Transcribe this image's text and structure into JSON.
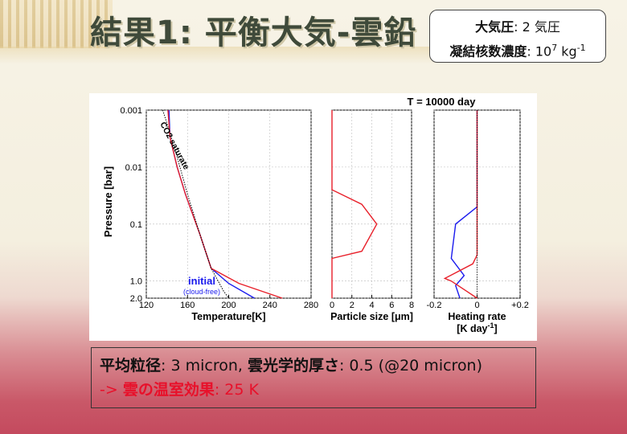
{
  "slide": {
    "title": "結果1: 平衡大気-雲鉛",
    "info_box": {
      "line1_label": "大気圧",
      "line1_value": ": 2 気圧",
      "line2_label": "凝結核数濃度",
      "line2_value": ": 10",
      "line2_exp": "7",
      "line2_unit": " kg",
      "line2_unit_exp": "-1"
    },
    "bottom_box": {
      "line1_label1": "平均粒径",
      "line1_value1": ": 3 micron, ",
      "line1_label2": "雲光学的厚さ",
      "line1_value2": ": 0.5 (@20 micron)",
      "line2_arrow": "-> ",
      "line2_label": "雲の温室効果",
      "line2_value": ": 25 K"
    }
  },
  "figure": {
    "time_label": "T = 10000 day",
    "y_axis_label": "Pressure [bar]",
    "y_ticks": [
      "0.001",
      "0.01",
      "0.1",
      "1.0",
      "2.0"
    ],
    "panel1": {
      "xlabel": "Temperature[K]",
      "x_ticks": [
        "120",
        "160",
        "200",
        "240",
        "280"
      ],
      "annotation_saturate": "CO2 saturate",
      "annotation_initial": "initial",
      "annotation_cloudfree": "(cloud-free)"
    },
    "panel2": {
      "xlabel": "Particle size [μm]",
      "x_ticks": [
        "0",
        "2",
        "4",
        "6",
        "8"
      ]
    },
    "panel3": {
      "xlabel": "Heating rate",
      "xlabel2": "[K day",
      "xlabel2_exp": "-1",
      "xlabel2_end": "]",
      "x_ticks": [
        "-0.2",
        "0",
        "+0.2"
      ]
    },
    "colors": {
      "initial": "#1a1aee",
      "result": "#e8202a",
      "saturate": "#000000"
    }
  },
  "chart_data": [
    {
      "type": "line",
      "title": "",
      "xlabel": "Temperature[K]",
      "ylabel": "Pressure [bar]",
      "yscale": "log",
      "ylim": [
        2.0,
        0.001
      ],
      "xlim": [
        120,
        280
      ],
      "series": [
        {
          "name": "initial (cloud-free)",
          "x": [
            142,
            143,
            150,
            158,
            172,
            183,
            200,
            225
          ],
          "y": [
            0.001,
            0.003,
            0.01,
            0.03,
            0.15,
            0.6,
            1.1,
            2.0
          ]
        },
        {
          "name": "",
          "x": [
            141,
            143,
            150,
            158,
            172,
            183,
            210,
            252
          ],
          "y": [
            0.001,
            0.003,
            0.01,
            0.03,
            0.15,
            0.6,
            1.1,
            2.0
          ]
        },
        {
          "name": "CO2 saturate",
          "x": [
            136,
            148,
            160,
            172,
            183,
            195,
            200
          ],
          "y": [
            0.001,
            0.005,
            0.03,
            0.15,
            0.6,
            1.5,
            2.0
          ]
        }
      ]
    },
    {
      "type": "line",
      "title": "",
      "xlabel": "Particle size [μm]",
      "ylabel": "",
      "yscale": "log",
      "ylim": [
        2.0,
        0.001
      ],
      "xlim": [
        0,
        8
      ],
      "series": [
        {
          "name": "",
          "x": [
            0,
            0,
            3,
            4.5,
            3,
            0,
            0
          ],
          "y": [
            0.001,
            0.025,
            0.045,
            0.1,
            0.3,
            0.4,
            2.0
          ]
        }
      ]
    },
    {
      "type": "line",
      "title": "",
      "xlabel": "Heating rate [K day-1]",
      "ylabel": "",
      "yscale": "log",
      "ylim": [
        2.0,
        0.001
      ],
      "xlim": [
        -0.2,
        0.2
      ],
      "series": [
        {
          "name": "",
          "x": [
            0,
            0,
            -0.1,
            -0.12,
            -0.06,
            -0.1,
            -0.08
          ],
          "y": [
            0.001,
            0.05,
            0.1,
            0.4,
            0.8,
            1.2,
            2.0
          ]
        },
        {
          "name": "",
          "x": [
            0,
            0,
            -0.02,
            -0.15,
            -0.12,
            -0.05,
            0
          ],
          "y": [
            0.001,
            0.35,
            0.5,
            0.9,
            1.0,
            1.5,
            2.0
          ]
        }
      ]
    }
  ]
}
